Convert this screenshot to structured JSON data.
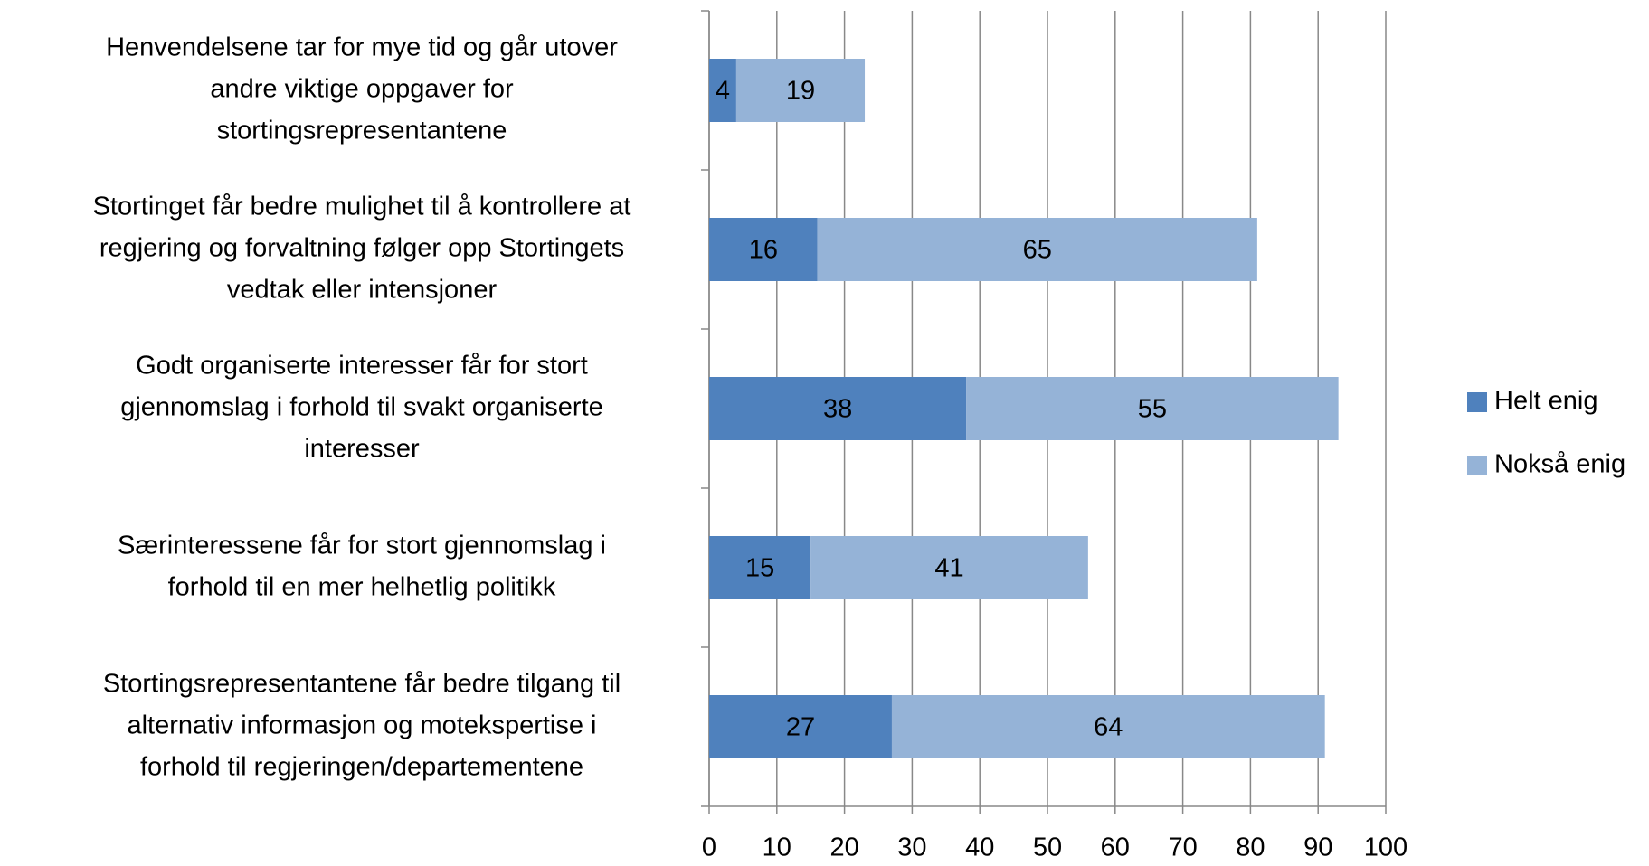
{
  "chart_data": {
    "type": "stacked-bar-horizontal",
    "categories": [
      [
        "Henvendelsene tar for mye tid og går utover",
        "andre viktige oppgaver for",
        "stortingsrepresentantene"
      ],
      [
        "Stortinget får bedre mulighet til å kontrollere at",
        "regjering og forvaltning følger opp Stortingets",
        "vedtak eller intensjoner"
      ],
      [
        "Godt organiserte interesser får for stort",
        "gjennomslag i forhold til svakt organiserte",
        "interesser"
      ],
      [
        "Særinteressene får for stort gjennomslag i",
        "forhold til en mer helhetlig politikk"
      ],
      [
        "Stortingsrepresentantene får bedre tilgang til",
        "alternativ informasjon og motekspertise i",
        "forhold til regjeringen/departementene"
      ]
    ],
    "series": [
      {
        "name": "Helt enig",
        "color": "#4f81bd",
        "values": [
          4,
          16,
          38,
          15,
          27
        ]
      },
      {
        "name": "Nokså enig",
        "color": "#95b3d7",
        "values": [
          19,
          65,
          55,
          41,
          64
        ]
      }
    ],
    "xlim": [
      0,
      100
    ],
    "xticks": [
      0,
      10,
      20,
      30,
      40,
      50,
      60,
      70,
      80,
      90,
      100
    ],
    "grid": true,
    "legend": "right"
  }
}
